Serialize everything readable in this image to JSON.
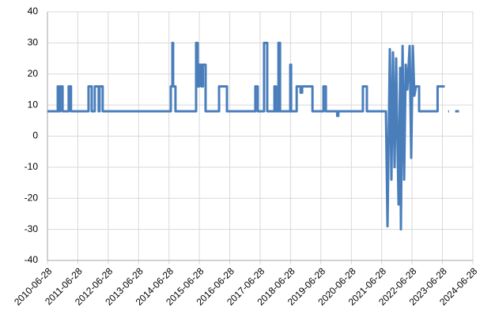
{
  "chart_data": {
    "type": "line",
    "x": [
      "2010-06-28",
      "2010-10-30",
      "2010-10-30",
      "2010-11-10",
      "2010-11-10",
      "2010-11-28",
      "2010-11-28",
      "2010-12-27",
      "2010-12-27",
      "2011-03-10",
      "2011-03-10",
      "2011-04-07",
      "2011-04-07",
      "2011-11-04",
      "2011-11-04",
      "2011-12-12",
      "2011-12-12",
      "2012-01-18",
      "2012-01-18",
      "2012-03-05",
      "2012-03-05",
      "2012-03-15",
      "2012-03-15",
      "2012-04-22",
      "2012-04-22",
      "2014-07-20",
      "2014-07-20",
      "2014-08-08",
      "2014-08-08",
      "2014-08-17",
      "2014-08-17",
      "2014-09-14",
      "2014-09-14",
      "2015-05-20",
      "2015-05-20",
      "2015-06-08",
      "2015-06-08",
      "2015-06-27",
      "2015-06-27",
      "2015-07-25",
      "2015-07-25",
      "2015-08-10",
      "2015-08-10",
      "2015-09-11",
      "2015-09-11",
      "2016-02-20",
      "2016-02-20",
      "2016-05-25",
      "2016-05-25",
      "2017-05-01",
      "2017-05-01",
      "2017-05-30",
      "2017-05-30",
      "2017-08-14",
      "2017-08-14",
      "2017-09-21",
      "2017-09-21",
      "2017-12-17",
      "2017-12-17",
      "2018-01-05",
      "2018-01-05",
      "2018-02-03",
      "2018-02-03",
      "2018-02-22",
      "2018-02-22",
      "2018-06-25",
      "2018-06-25",
      "2018-07-05",
      "2018-07-05",
      "2018-09-10",
      "2018-09-10",
      "2018-10-27",
      "2018-10-27",
      "2018-11-15",
      "2018-11-15",
      "2019-03-19",
      "2019-03-19",
      "2019-07-29",
      "2019-07-29",
      "2019-08-27",
      "2019-08-27",
      "2020-01-10",
      "2020-01-10",
      "2020-01-24",
      "2020-01-24",
      "2020-11-14",
      "2020-11-14",
      "2021-01-01",
      "2021-01-01",
      "2021-08-18",
      "2021-09-06",
      "2021-10-04",
      "2021-10-23",
      "2021-11-11",
      "2021-11-30",
      "2021-12-19",
      "2021-12-28",
      "2022-01-17",
      "2022-02-05",
      "2022-02-14",
      "2022-03-06",
      "2022-03-25",
      "2022-04-13",
      "2022-05-02",
      "2022-05-30",
      "2022-06-18",
      "2022-07-07",
      "2022-07-26",
      "2022-08-14",
      "2022-09-21",
      "2022-09-21",
      "2023-05-01",
      "2023-05-01",
      "2023-07-26",
      "2023-08-15",
      "2023-09-05",
      "2023-09-15",
      "2023-10-20",
      "2023-11-28",
      "2024-01-14"
    ],
    "series": [
      {
        "color": "#4a7ebb",
        "values": [
          8,
          8,
          16,
          16,
          8,
          8,
          16,
          16,
          8,
          8,
          16,
          16,
          8,
          8,
          16,
          16,
          8,
          8,
          16,
          16,
          8,
          8,
          16,
          16,
          8,
          8,
          16,
          16,
          30,
          30,
          16,
          16,
          8,
          8,
          30,
          30,
          16,
          16,
          23,
          23,
          16,
          16,
          23,
          23,
          8,
          8,
          16,
          16,
          8,
          8,
          16,
          16,
          8,
          8,
          30,
          30,
          8,
          8,
          16,
          16,
          8,
          8,
          30,
          30,
          8,
          8,
          23,
          23,
          8,
          8,
          16,
          16,
          14,
          14,
          16,
          16,
          8,
          8,
          16,
          16,
          8,
          8,
          6.5,
          6.5,
          8,
          8,
          16,
          16,
          8,
          8,
          -29,
          28,
          -14,
          27,
          -10,
          25,
          8,
          -22,
          22,
          -30,
          29,
          -14,
          23,
          15,
          29,
          -7,
          29,
          13,
          16,
          16,
          8,
          8,
          16,
          16,
          null,
          8,
          8,
          null,
          8,
          8
        ]
      }
    ],
    "xlim": [
      "2010-06-28",
      "2024-06-28"
    ],
    "xticks": [
      "2010-06-28",
      "2011-06-28",
      "2012-06-28",
      "2013-06-28",
      "2014-06-28",
      "2015-06-28",
      "2016-06-28",
      "2017-06-28",
      "2018-06-28",
      "2019-06-28",
      "2020-06-28",
      "2021-06-28",
      "2022-06-28",
      "2023-06-28",
      "2024-06-28"
    ],
    "ylim": [
      -40,
      40
    ],
    "yticks": [
      -40,
      -30,
      -20,
      -10,
      0,
      10,
      20,
      30,
      40
    ],
    "grid": true
  }
}
